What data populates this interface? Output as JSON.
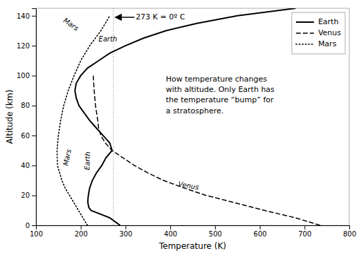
{
  "chart_data": {
    "type": "line",
    "xlabel": "Temperature (K)",
    "ylabel": "Altitude (km)",
    "xlim": [
      100,
      800
    ],
    "ylim": [
      0,
      145
    ],
    "xticks": [
      100,
      200,
      300,
      400,
      500,
      600,
      700,
      800
    ],
    "yticks": [
      0,
      20,
      40,
      60,
      80,
      100,
      120,
      140
    ],
    "grid": false,
    "legend": "upper right",
    "reference_x": 273,
    "series": [
      {
        "name": "Earth",
        "color": "black",
        "line_style": "solid",
        "x": [
          288,
          265,
          223,
          218,
          216,
          216,
          217,
          220,
          226,
          235,
          247,
          256,
          270,
          265,
          250,
          235,
          220,
          208,
          196,
          190,
          187,
          190,
          200,
          215,
          240,
          265,
          300,
          340,
          390,
          460,
          550,
          680
        ],
        "values": [
          0,
          5,
          10,
          12,
          15,
          17,
          20,
          25,
          30,
          35,
          40,
          45,
          50,
          55,
          60,
          65,
          70,
          75,
          80,
          85,
          90,
          95,
          100,
          105,
          110,
          115,
          120,
          125,
          130,
          135,
          140,
          145
        ]
      },
      {
        "name": "Venus",
        "color": "black",
        "line_style": "dashed",
        "x": [
          735,
          680,
          610,
          545,
          480,
          430,
          385,
          350,
          320,
          295,
          270,
          255,
          245,
          240,
          238,
          233,
          230,
          228
        ],
        "values": [
          0,
          5,
          10,
          15,
          20,
          25,
          30,
          35,
          40,
          45,
          50,
          55,
          60,
          65,
          70,
          80,
          90,
          100
        ]
      },
      {
        "name": "Mars",
        "color": "black",
        "line_style": "dotted",
        "x": [
          215,
          205,
          195,
          185,
          175,
          165,
          158,
          148,
          147,
          150,
          155,
          162,
          172,
          185,
          200,
          220,
          245,
          265
        ],
        "values": [
          0,
          5,
          10,
          15,
          20,
          25,
          30,
          40,
          50,
          60,
          70,
          80,
          90,
          100,
          110,
          120,
          130,
          140
        ]
      }
    ],
    "annotations": [
      {
        "text": "273 K = 0º C",
        "x": 323,
        "y": 139,
        "arrow": {
          "from": [
            320,
            139
          ],
          "to": [
            277,
            139
          ]
        }
      },
      {
        "text": "Earth",
        "x": 240,
        "y": 123
      },
      {
        "text": "Earth",
        "x": 220,
        "y": 43
      },
      {
        "text": "Mars",
        "x": 175,
        "y": 45
      },
      {
        "text": "Mars",
        "x": 175,
        "y": 133
      },
      {
        "text": "Venus",
        "x": 440,
        "y": 25
      },
      {
        "text": "How temperature changes\nwith altitude. Only Earth has\nthe temperature “bump” for\na stratosphere.",
        "x": 390,
        "y": 87
      }
    ]
  }
}
